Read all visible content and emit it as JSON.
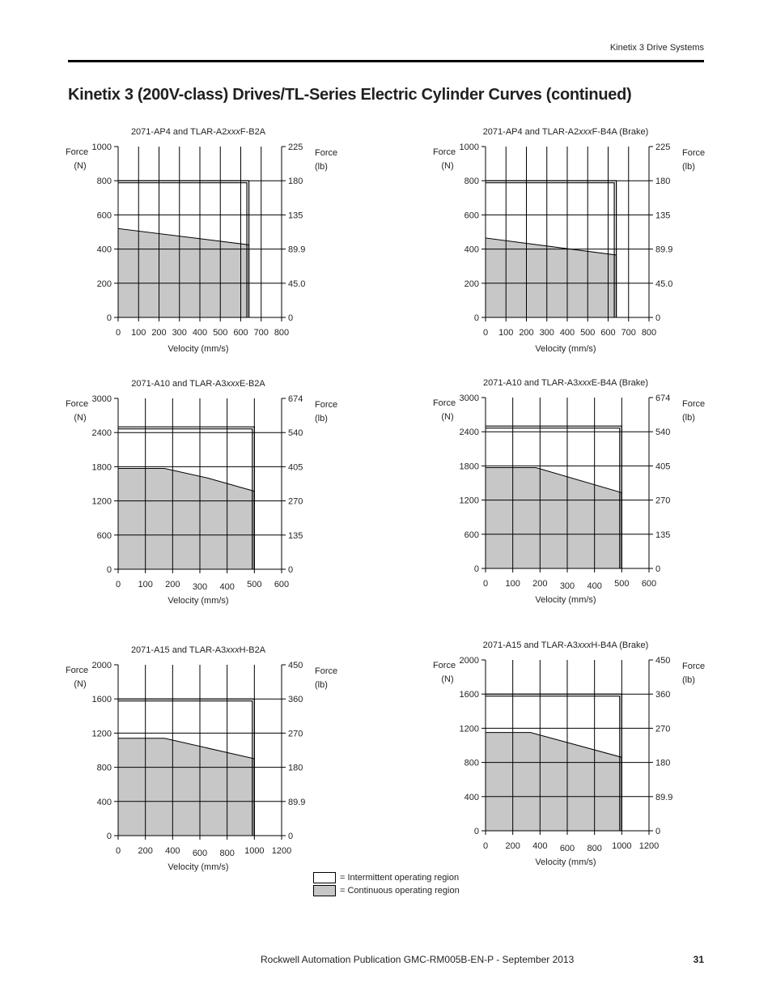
{
  "header": {
    "section": "Kinetix 3 Drive Systems"
  },
  "page_title": "Kinetix 3 (200V-class) Drives/TL-Series Electric Cylinder Curves (continued)",
  "legend": {
    "intermittent": "= Intermittent operating region",
    "continuous": "= Continuous operating region",
    "colors": {
      "intermittent": "#ffffff",
      "continuous": "#c7c7c7"
    }
  },
  "footer": {
    "publication": "Rockwell Automation Publication GMC-RM005B-EN-P - September 2013",
    "page_number": "31"
  },
  "chart_data": [
    {
      "type": "area",
      "title": "2071-AP4 and TLAR-A2xxxF-B2A",
      "xlabel": "Velocity (mm/s)",
      "ylabel_left": [
        "Force",
        "(N)"
      ],
      "ylabel_right": [
        "Force",
        "(lb)"
      ],
      "x_ticks": [
        "0",
        "100",
        "200",
        "300",
        "400",
        "500",
        "600",
        "700",
        "800"
      ],
      "y_ticks_left": [
        "0",
        "200",
        "400",
        "600",
        "800",
        "1000"
      ],
      "y_ticks_right": [
        "0",
        "45.0",
        "89.9",
        "135",
        "180",
        "225"
      ],
      "xlim": [
        0,
        800
      ],
      "ylim": [
        0,
        1000
      ],
      "grid": true,
      "intermittent": {
        "x": [
          0,
          640,
          640
        ],
        "y": [
          800,
          800,
          0
        ]
      },
      "continuous": {
        "x": [
          0,
          640
        ],
        "y": [
          520,
          425
        ]
      }
    },
    {
      "type": "area",
      "title": "2071-AP4 and TLAR-A2xxxF-B4A (Brake)",
      "xlabel": "Velocity (mm/s)",
      "ylabel_left": [
        "Force",
        "(N)"
      ],
      "ylabel_right": [
        "Force",
        "(lb)"
      ],
      "x_ticks": [
        "0",
        "100",
        "200",
        "300",
        "400",
        "500",
        "600",
        "700",
        "800"
      ],
      "y_ticks_left": [
        "0",
        "200",
        "400",
        "600",
        "800",
        "1000"
      ],
      "y_ticks_right": [
        "0",
        "45.0",
        "89.9",
        "135",
        "180",
        "225"
      ],
      "xlim": [
        0,
        800
      ],
      "ylim": [
        0,
        1000
      ],
      "grid": true,
      "intermittent": {
        "x": [
          0,
          640,
          640
        ],
        "y": [
          800,
          800,
          0
        ]
      },
      "continuous": {
        "x": [
          0,
          640
        ],
        "y": [
          465,
          365
        ]
      }
    },
    {
      "type": "area",
      "title": "2071-A10 and TLAR-A3xxxE-B2A",
      "xlabel": "Velocity (mm/s)",
      "ylabel_left": [
        "Force",
        "(N)"
      ],
      "ylabel_right": [
        "Force",
        "(lb)"
      ],
      "x_ticks": [
        "0",
        "100",
        "200",
        "300",
        "400",
        "500",
        "600"
      ],
      "y_ticks_left": [
        "0",
        "600",
        "1200",
        "1800",
        "2400",
        "3000"
      ],
      "y_ticks_right": [
        "0",
        "135",
        "270",
        "405",
        "540",
        "674"
      ],
      "xlim": [
        0,
        600
      ],
      "ylim": [
        0,
        3000
      ],
      "grid": true,
      "intermittent": {
        "x": [
          0,
          500,
          500
        ],
        "y": [
          2500,
          2500,
          0
        ]
      },
      "continuous": {
        "x": [
          0,
          170,
          330,
          500
        ],
        "y": [
          1770,
          1770,
          1600,
          1370
        ]
      }
    },
    {
      "type": "area",
      "title": "2071-A10 and TLAR-A3xxxE-B4A (Brake)",
      "xlabel": "Velocity (mm/s)",
      "ylabel_left": [
        "Force",
        "(N)"
      ],
      "ylabel_right": [
        "Force",
        "(lb)"
      ],
      "x_ticks": [
        "0",
        "100",
        "200",
        "300",
        "400",
        "500",
        "600"
      ],
      "y_ticks_left": [
        "0",
        "600",
        "1200",
        "1800",
        "2400",
        "3000"
      ],
      "y_ticks_right": [
        "0",
        "135",
        "270",
        "405",
        "540",
        "674"
      ],
      "xlim": [
        0,
        600
      ],
      "ylim": [
        0,
        3000
      ],
      "grid": true,
      "intermittent": {
        "x": [
          0,
          500,
          500
        ],
        "y": [
          2500,
          2500,
          0
        ]
      },
      "continuous": {
        "x": [
          0,
          185,
          500
        ],
        "y": [
          1770,
          1770,
          1330
        ]
      }
    },
    {
      "type": "area",
      "title": "2071-A15 and TLAR-A3xxxH-B2A",
      "xlabel": "Velocity (mm/s)",
      "ylabel_left": [
        "Force",
        "(N)"
      ],
      "ylabel_right": [
        "Force",
        "(lb)"
      ],
      "x_ticks": [
        "0",
        "200",
        "400",
        "600",
        "800",
        "1000",
        "1200"
      ],
      "y_ticks_left": [
        "0",
        "400",
        "800",
        "1200",
        "1600",
        "2000"
      ],
      "y_ticks_right": [
        "0",
        "89.9",
        "180",
        "270",
        "360",
        "450"
      ],
      "xlim": [
        0,
        1200
      ],
      "ylim": [
        0,
        2000
      ],
      "grid": true,
      "intermittent": {
        "x": [
          0,
          1000,
          1000
        ],
        "y": [
          1600,
          1600,
          0
        ]
      },
      "continuous": {
        "x": [
          0,
          340,
          1000
        ],
        "y": [
          1140,
          1140,
          900
        ]
      }
    },
    {
      "type": "area",
      "title": "2071-A15 and TLAR-A3xxxH-B4A (Brake)",
      "xlabel": "Velocity (mm/s)",
      "ylabel_left": [
        "Force",
        "(N)"
      ],
      "ylabel_right": [
        "Force",
        "(lb)"
      ],
      "x_ticks": [
        "0",
        "200",
        "400",
        "600",
        "800",
        "1000",
        "1200"
      ],
      "y_ticks_left": [
        "0",
        "400",
        "800",
        "1200",
        "1600",
        "2000"
      ],
      "y_ticks_right": [
        "0",
        "89.9",
        "180",
        "270",
        "360",
        "450"
      ],
      "xlim": [
        0,
        1200
      ],
      "ylim": [
        0,
        2000
      ],
      "grid": true,
      "intermittent": {
        "x": [
          0,
          1000,
          1000
        ],
        "y": [
          1600,
          1600,
          0
        ]
      },
      "continuous": {
        "x": [
          0,
          330,
          1000
        ],
        "y": [
          1150,
          1150,
          860
        ]
      }
    }
  ]
}
